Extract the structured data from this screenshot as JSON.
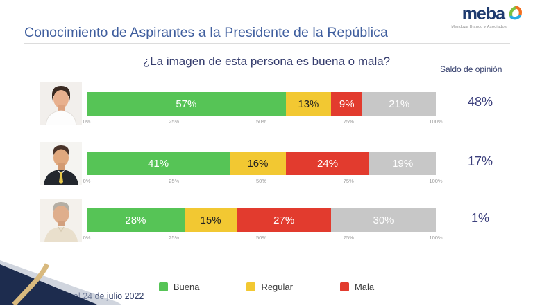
{
  "logo": {
    "name": "meba",
    "tagline": "Mendoza Blanco y Asociados"
  },
  "header": {
    "title": "Conocimiento de Aspirantes a la Presidente de la República"
  },
  "question": "¿La imagen de esta persona es buena o mala?",
  "saldo_header": "Saldo de opinión",
  "footer": "Nacional – 22 al 24 de julio 2022",
  "colors": {
    "buena": "#56c456",
    "regular": "#f2c832",
    "mala": "#e23b2e",
    "no_label_gray": "#c7c7c7",
    "title_blue": "#3f5e9e",
    "navy_text": "#3b3f7c",
    "corner_navy": "#1d2c4e",
    "corner_gold": "#d8b97e"
  },
  "chart_data": {
    "type": "bar",
    "subtype": "stacked-horizontal",
    "title": "¿La imagen de esta persona es buena o mala?",
    "categories": [
      "candidata-1",
      "candidato-2",
      "candidato-3"
    ],
    "series": [
      {
        "name": "Buena",
        "color": "#56c456",
        "dark_label": false,
        "values": [
          57,
          41,
          28
        ]
      },
      {
        "name": "Regular",
        "color": "#f2c832",
        "dark_label": true,
        "values": [
          13,
          16,
          15
        ]
      },
      {
        "name": "Mala",
        "color": "#e23b2e",
        "dark_label": false,
        "values": [
          9,
          24,
          27
        ]
      },
      {
        "name": "",
        "color": "#c7c7c7",
        "dark_label": false,
        "values": [
          21,
          19,
          30
        ]
      }
    ],
    "saldo_de_opinion": [
      "48%",
      "17%",
      "1%"
    ],
    "x_ticks": [
      "0%",
      "25%",
      "50%",
      "75%",
      "100%"
    ],
    "xlim": [
      0,
      100
    ],
    "legend": [
      "Buena",
      "Regular",
      "Mala"
    ],
    "legend_position": "bottom",
    "grid": false
  }
}
